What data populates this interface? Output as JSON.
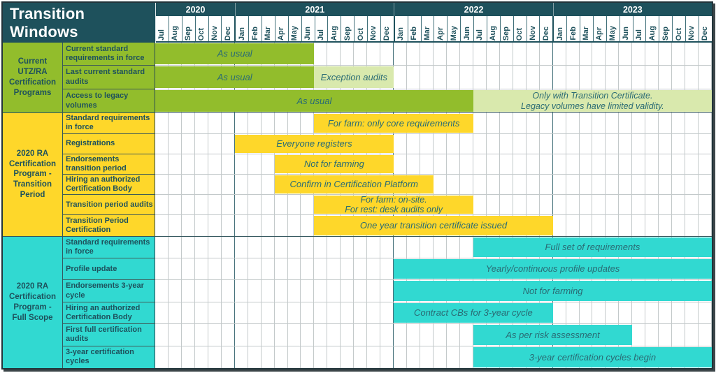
{
  "header": {
    "title": "Transition Windows"
  },
  "colors": {
    "dark_teal": "#1e515c",
    "green": "#92bd2c",
    "light_green": "#d9e9ad",
    "yellow": "#fed72a",
    "cyan": "#31d9d1",
    "grid_line": "#c3c9ca",
    "bar_text": "#2a6b74"
  },
  "chart_data": {
    "type": "gantt",
    "title": "Transition Windows",
    "time_axis": {
      "unit": "month",
      "years": [
        {
          "label": "2020",
          "months": [
            "Jul",
            "Aug",
            "Sep",
            "Oct",
            "Nov",
            "Dec"
          ]
        },
        {
          "label": "2021",
          "months": [
            "Jan",
            "Feb",
            "Mar",
            "Apr",
            "May",
            "Jun",
            "Jul",
            "Aug",
            "Sep",
            "Oct",
            "Nov",
            "Dec"
          ]
        },
        {
          "label": "2022",
          "months": [
            "Jan",
            "Feb",
            "Mar",
            "Apr",
            "May",
            "Jun",
            "Jul",
            "Aug",
            "Sep",
            "Oct",
            "Nov",
            "Dec"
          ]
        },
        {
          "label": "2023",
          "months": [
            "Jan",
            "Feb",
            "Mar",
            "Apr",
            "May",
            "Jun",
            "Jul",
            "Aug",
            "Sep",
            "Oct",
            "Nov",
            "Dec"
          ]
        }
      ]
    },
    "groups": [
      {
        "label": "Current UTZ/RA Certification Programs",
        "label_lines": [
          "Current",
          "UTZ/RA",
          "Certification",
          "Programs"
        ],
        "color": "green",
        "rows": [
          {
            "label": "Current standard requirements in force",
            "bars": [
              {
                "lines": [
                  "As usual"
                ],
                "style": "solid",
                "start_month": "Jul 2020",
                "end_month": "Jun 2021",
                "start": 0,
                "end": 12
              }
            ]
          },
          {
            "label": "Last current standard audits",
            "bars": [
              {
                "lines": [
                  "As usual"
                ],
                "style": "solid",
                "start_month": "Jul 2020",
                "end_month": "Jun 2021",
                "start": 0,
                "end": 12
              },
              {
                "lines": [
                  "Exception audits"
                ],
                "style": "light",
                "start_month": "Jul 2021",
                "end_month": "Dec 2021",
                "start": 12,
                "end": 18
              }
            ]
          },
          {
            "label": "Access to legacy volumes",
            "bars": [
              {
                "lines": [
                  "As usual"
                ],
                "style": "solid",
                "start_month": "Jul 2020",
                "end_month": "Jun 2022",
                "start": 0,
                "end": 24
              },
              {
                "lines": [
                  "Only with Transition Certificate.",
                  "Legacy volumes have limited validity."
                ],
                "style": "light",
                "start_month": "Jul 2022",
                "end_month": "Dec 2023",
                "start": 24,
                "end": 42
              }
            ]
          }
        ]
      },
      {
        "label": "2020 RA Certification Program - Transition Period",
        "label_lines": [
          "2020 RA",
          "Certification",
          "Program  -",
          "Transition",
          "Period"
        ],
        "color": "yellow",
        "rows": [
          {
            "label": "Standard requirements in force",
            "bars": [
              {
                "lines": [
                  "For farm: only core requirements"
                ],
                "style": "solid",
                "start_month": "Jul 2021",
                "end_month": "Jun 2022",
                "start": 12,
                "end": 24
              }
            ]
          },
          {
            "label": "Registrations",
            "bars": [
              {
                "lines": [
                  "Everyone registers"
                ],
                "style": "solid",
                "start_month": "Jan 2021",
                "end_month": "Dec 2021",
                "start": 6,
                "end": 18
              }
            ]
          },
          {
            "label": "Endorsements transition period",
            "bars": [
              {
                "lines": [
                  "Not for farming"
                ],
                "style": "solid",
                "start_month": "Apr 2021",
                "end_month": "Dec 2021",
                "start": 9,
                "end": 18
              }
            ]
          },
          {
            "label": "Hiring an authorized Certification Body",
            "bars": [
              {
                "lines": [
                  "Confirm in Certification Platform"
                ],
                "style": "solid",
                "start_month": "Apr 2021",
                "end_month": "Mar 2022",
                "start": 9,
                "end": 21
              }
            ]
          },
          {
            "label": "Transition period audits",
            "bars": [
              {
                "lines": [
                  "For farm: on-site.",
                  "For rest: desk audits only"
                ],
                "style": "solid",
                "start_month": "Jul 2021",
                "end_month": "Jun 2022",
                "start": 12,
                "end": 24
              }
            ]
          },
          {
            "label": "Transition Period Certification",
            "bars": [
              {
                "lines": [
                  "One year transition certificate issued"
                ],
                "style": "solid",
                "start_month": "Jul 2021",
                "end_month": "Dec 2022",
                "start": 12,
                "end": 30
              }
            ]
          }
        ]
      },
      {
        "label": "2020 RA Certification Program - Full Scope",
        "label_lines": [
          "2020 RA",
          "Certification",
          "Program -",
          "Full Scope"
        ],
        "color": "cyan",
        "rows": [
          {
            "label": "Standard requirements in force",
            "bars": [
              {
                "lines": [
                  "Full set of requirements"
                ],
                "style": "solid",
                "start_month": "Jul 2022",
                "end_month": "Dec 2023",
                "start": 24,
                "end": 42
              }
            ]
          },
          {
            "label": "Profile update",
            "bars": [
              {
                "lines": [
                  "Yearly/continuous profile updates"
                ],
                "style": "solid",
                "start_month": "Jan 2022",
                "end_month": "Dec 2023",
                "start": 18,
                "end": 42
              }
            ]
          },
          {
            "label": "Endorsements 3-year cycle",
            "bars": [
              {
                "lines": [
                  "Not for farming"
                ],
                "style": "solid",
                "start_month": "Jan 2022",
                "end_month": "Dec 2023",
                "start": 18,
                "end": 42
              }
            ]
          },
          {
            "label": "Hiring an authorized Certification Body",
            "bars": [
              {
                "lines": [
                  "Contract CBs for 3-year cycle"
                ],
                "style": "solid",
                "start_month": "Jan 2022",
                "end_month": "Dec 2022",
                "start": 18,
                "end": 30
              }
            ]
          },
          {
            "label": "First full certification audits",
            "bars": [
              {
                "lines": [
                  "As per risk assessment"
                ],
                "style": "solid",
                "start_month": "Jul 2022",
                "end_month": "Jun 2023",
                "start": 24,
                "end": 36
              }
            ]
          },
          {
            "label": "3-year certification cycles",
            "bars": [
              {
                "lines": [
                  "3-year certification cycles begin"
                ],
                "style": "solid",
                "start_month": "Jul 2022",
                "end_month": "Dec 2023",
                "start": 24,
                "end": 42
              }
            ]
          }
        ]
      }
    ]
  }
}
